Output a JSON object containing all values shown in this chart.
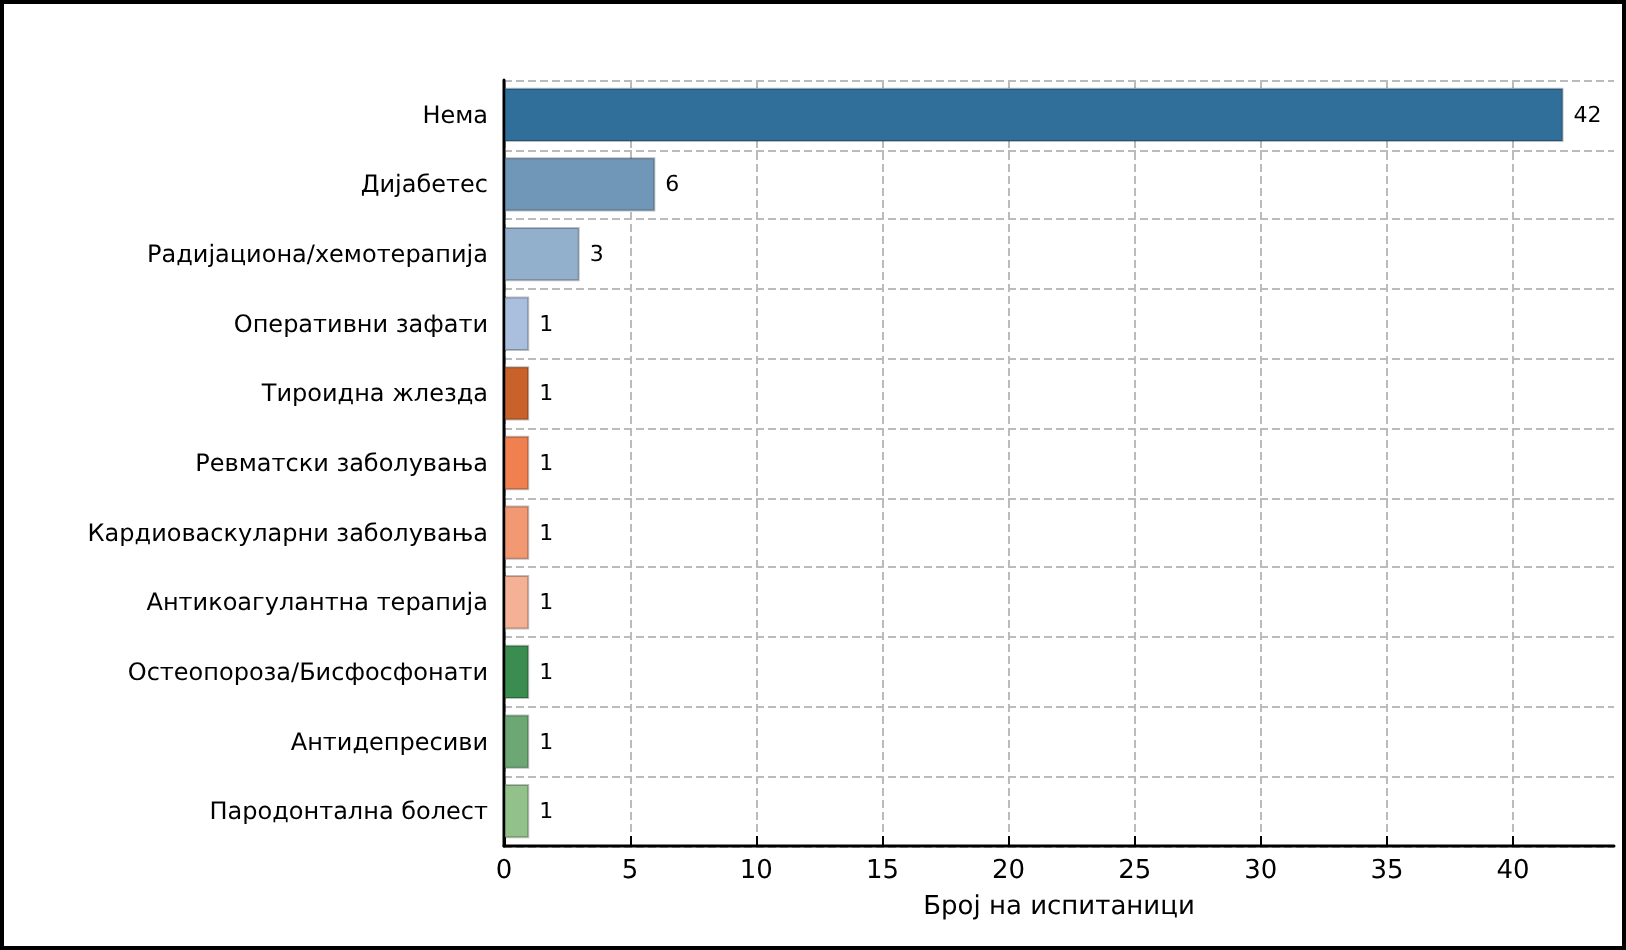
{
  "chart_data": {
    "type": "bar",
    "orientation": "horizontal",
    "xlabel": "Број на испитаници",
    "categories": [
      "Нема",
      "Дијабетес",
      "Радијациона/хемотерапија",
      "Оперативни зафати",
      "Тироидна жлезда",
      "Ревматски заболувања",
      "Кардиоваскуларни заболувања",
      "Антикоагулантна терапија",
      "Остеопороза/Бисфосфонати",
      "Антидепресиви",
      "Пародонтална болест"
    ],
    "values": [
      42,
      6,
      3,
      1,
      1,
      1,
      1,
      1,
      1,
      1,
      1
    ],
    "colors": [
      "#2f6f99",
      "#7197b8",
      "#92b0cb",
      "#aabfde",
      "#c8622a",
      "#f08050",
      "#f29873",
      "#f4b195",
      "#3a8c4f",
      "#6da774",
      "#92c28a"
    ],
    "xlim": [
      0,
      44
    ],
    "xticks": [
      0,
      5,
      10,
      15,
      20,
      25,
      30,
      35,
      40
    ],
    "grid": true,
    "data_labels": true
  }
}
